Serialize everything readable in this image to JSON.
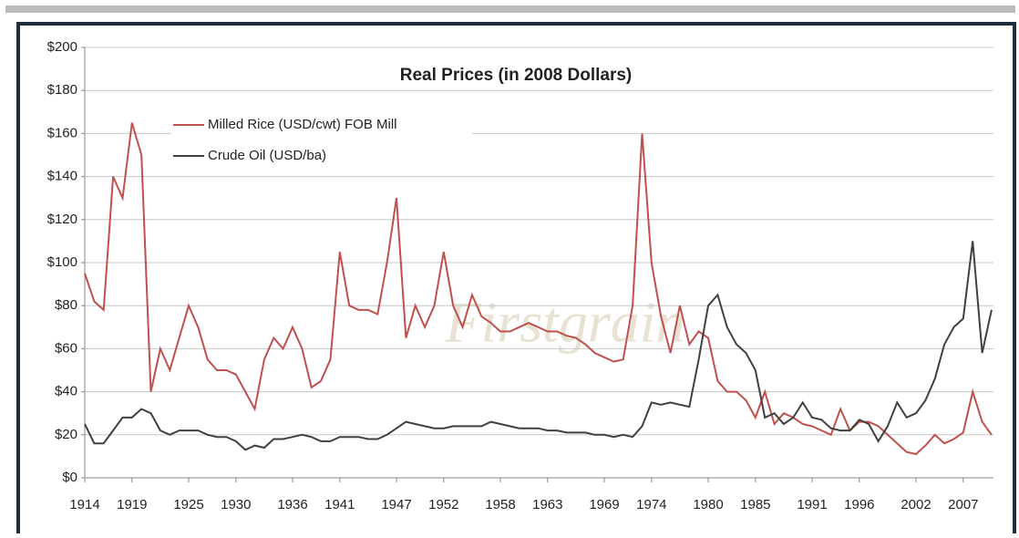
{
  "chart_data": {
    "type": "line",
    "title": "Real Prices (in 2008 Dollars)",
    "watermark": "Firstgrain",
    "x": [
      1914,
      1915,
      1916,
      1917,
      1918,
      1919,
      1920,
      1921,
      1922,
      1923,
      1924,
      1925,
      1926,
      1927,
      1928,
      1929,
      1930,
      1931,
      1932,
      1933,
      1934,
      1935,
      1936,
      1937,
      1938,
      1939,
      1940,
      1941,
      1942,
      1943,
      1944,
      1945,
      1946,
      1947,
      1948,
      1949,
      1950,
      1951,
      1952,
      1953,
      1954,
      1955,
      1956,
      1957,
      1958,
      1959,
      1960,
      1961,
      1962,
      1963,
      1964,
      1965,
      1966,
      1967,
      1968,
      1969,
      1970,
      1971,
      1972,
      1973,
      1974,
      1975,
      1976,
      1977,
      1978,
      1979,
      1980,
      1981,
      1982,
      1983,
      1984,
      1985,
      1986,
      1987,
      1988,
      1989,
      1990,
      1991,
      1992,
      1993,
      1994,
      1995,
      1996,
      1997,
      1998,
      1999,
      2000,
      2001,
      2002,
      2003,
      2004,
      2005,
      2006,
      2007,
      2008,
      2009,
      2010
    ],
    "series": [
      {
        "name": "Milled Rice (USD/cwt) FOB Mill",
        "color": "#c0504d",
        "values": [
          95,
          82,
          78,
          140,
          130,
          165,
          150,
          40,
          60,
          50,
          65,
          80,
          70,
          55,
          50,
          50,
          48,
          40,
          32,
          55,
          65,
          60,
          70,
          60,
          42,
          45,
          55,
          105,
          80,
          78,
          78,
          76,
          100,
          130,
          65,
          80,
          70,
          80,
          105,
          80,
          70,
          85,
          75,
          72,
          68,
          68,
          70,
          72,
          70,
          68,
          68,
          66,
          65,
          62,
          58,
          56,
          54,
          55,
          80,
          160,
          100,
          75,
          58,
          80,
          62,
          68,
          65,
          45,
          40,
          40,
          36,
          28,
          40,
          25,
          30,
          28,
          25,
          24,
          22,
          20,
          32,
          22,
          26,
          26,
          24,
          20,
          16,
          12,
          11,
          15,
          20,
          16,
          18,
          21,
          40,
          26,
          20
        ]
      },
      {
        "name": "Crude Oil (USD/ba)",
        "color": "#404040",
        "values": [
          25,
          16,
          16,
          22,
          28,
          28,
          32,
          30,
          22,
          20,
          22,
          22,
          22,
          20,
          19,
          19,
          17,
          13,
          15,
          14,
          18,
          18,
          19,
          20,
          19,
          17,
          17,
          19,
          19,
          19,
          18,
          18,
          20,
          23,
          26,
          25,
          24,
          23,
          23,
          24,
          24,
          24,
          24,
          26,
          25,
          24,
          23,
          23,
          23,
          22,
          22,
          21,
          21,
          21,
          20,
          20,
          19,
          20,
          19,
          24,
          35,
          34,
          35,
          34,
          33,
          55,
          80,
          85,
          70,
          62,
          58,
          50,
          28,
          30,
          25,
          28,
          35,
          28,
          27,
          23,
          22,
          22,
          27,
          25,
          17,
          24,
          35,
          28,
          30,
          36,
          46,
          62,
          70,
          74,
          110,
          58,
          78
        ]
      }
    ],
    "xlim": [
      1914,
      2010.2
    ],
    "xticks": [
      1914,
      1919,
      1925,
      1930,
      1936,
      1941,
      1947,
      1952,
      1958,
      1963,
      1969,
      1974,
      1980,
      1985,
      1991,
      1996,
      2002,
      2007
    ],
    "ylim": [
      0,
      200
    ],
    "yticks": [
      {
        "value": 0,
        "label": "$0"
      },
      {
        "value": 20,
        "label": "$20"
      },
      {
        "value": 40,
        "label": "$40"
      },
      {
        "value": 60,
        "label": "$60"
      },
      {
        "value": 80,
        "label": "$80"
      },
      {
        "value": 100,
        "label": "$100"
      },
      {
        "value": 120,
        "label": "$120"
      },
      {
        "value": 140,
        "label": "$140"
      },
      {
        "value": 160,
        "label": "$160"
      },
      {
        "value": 180,
        "label": "$180"
      },
      {
        "value": 200,
        "label": "$200"
      }
    ],
    "grid": true,
    "legend": "upper left"
  }
}
